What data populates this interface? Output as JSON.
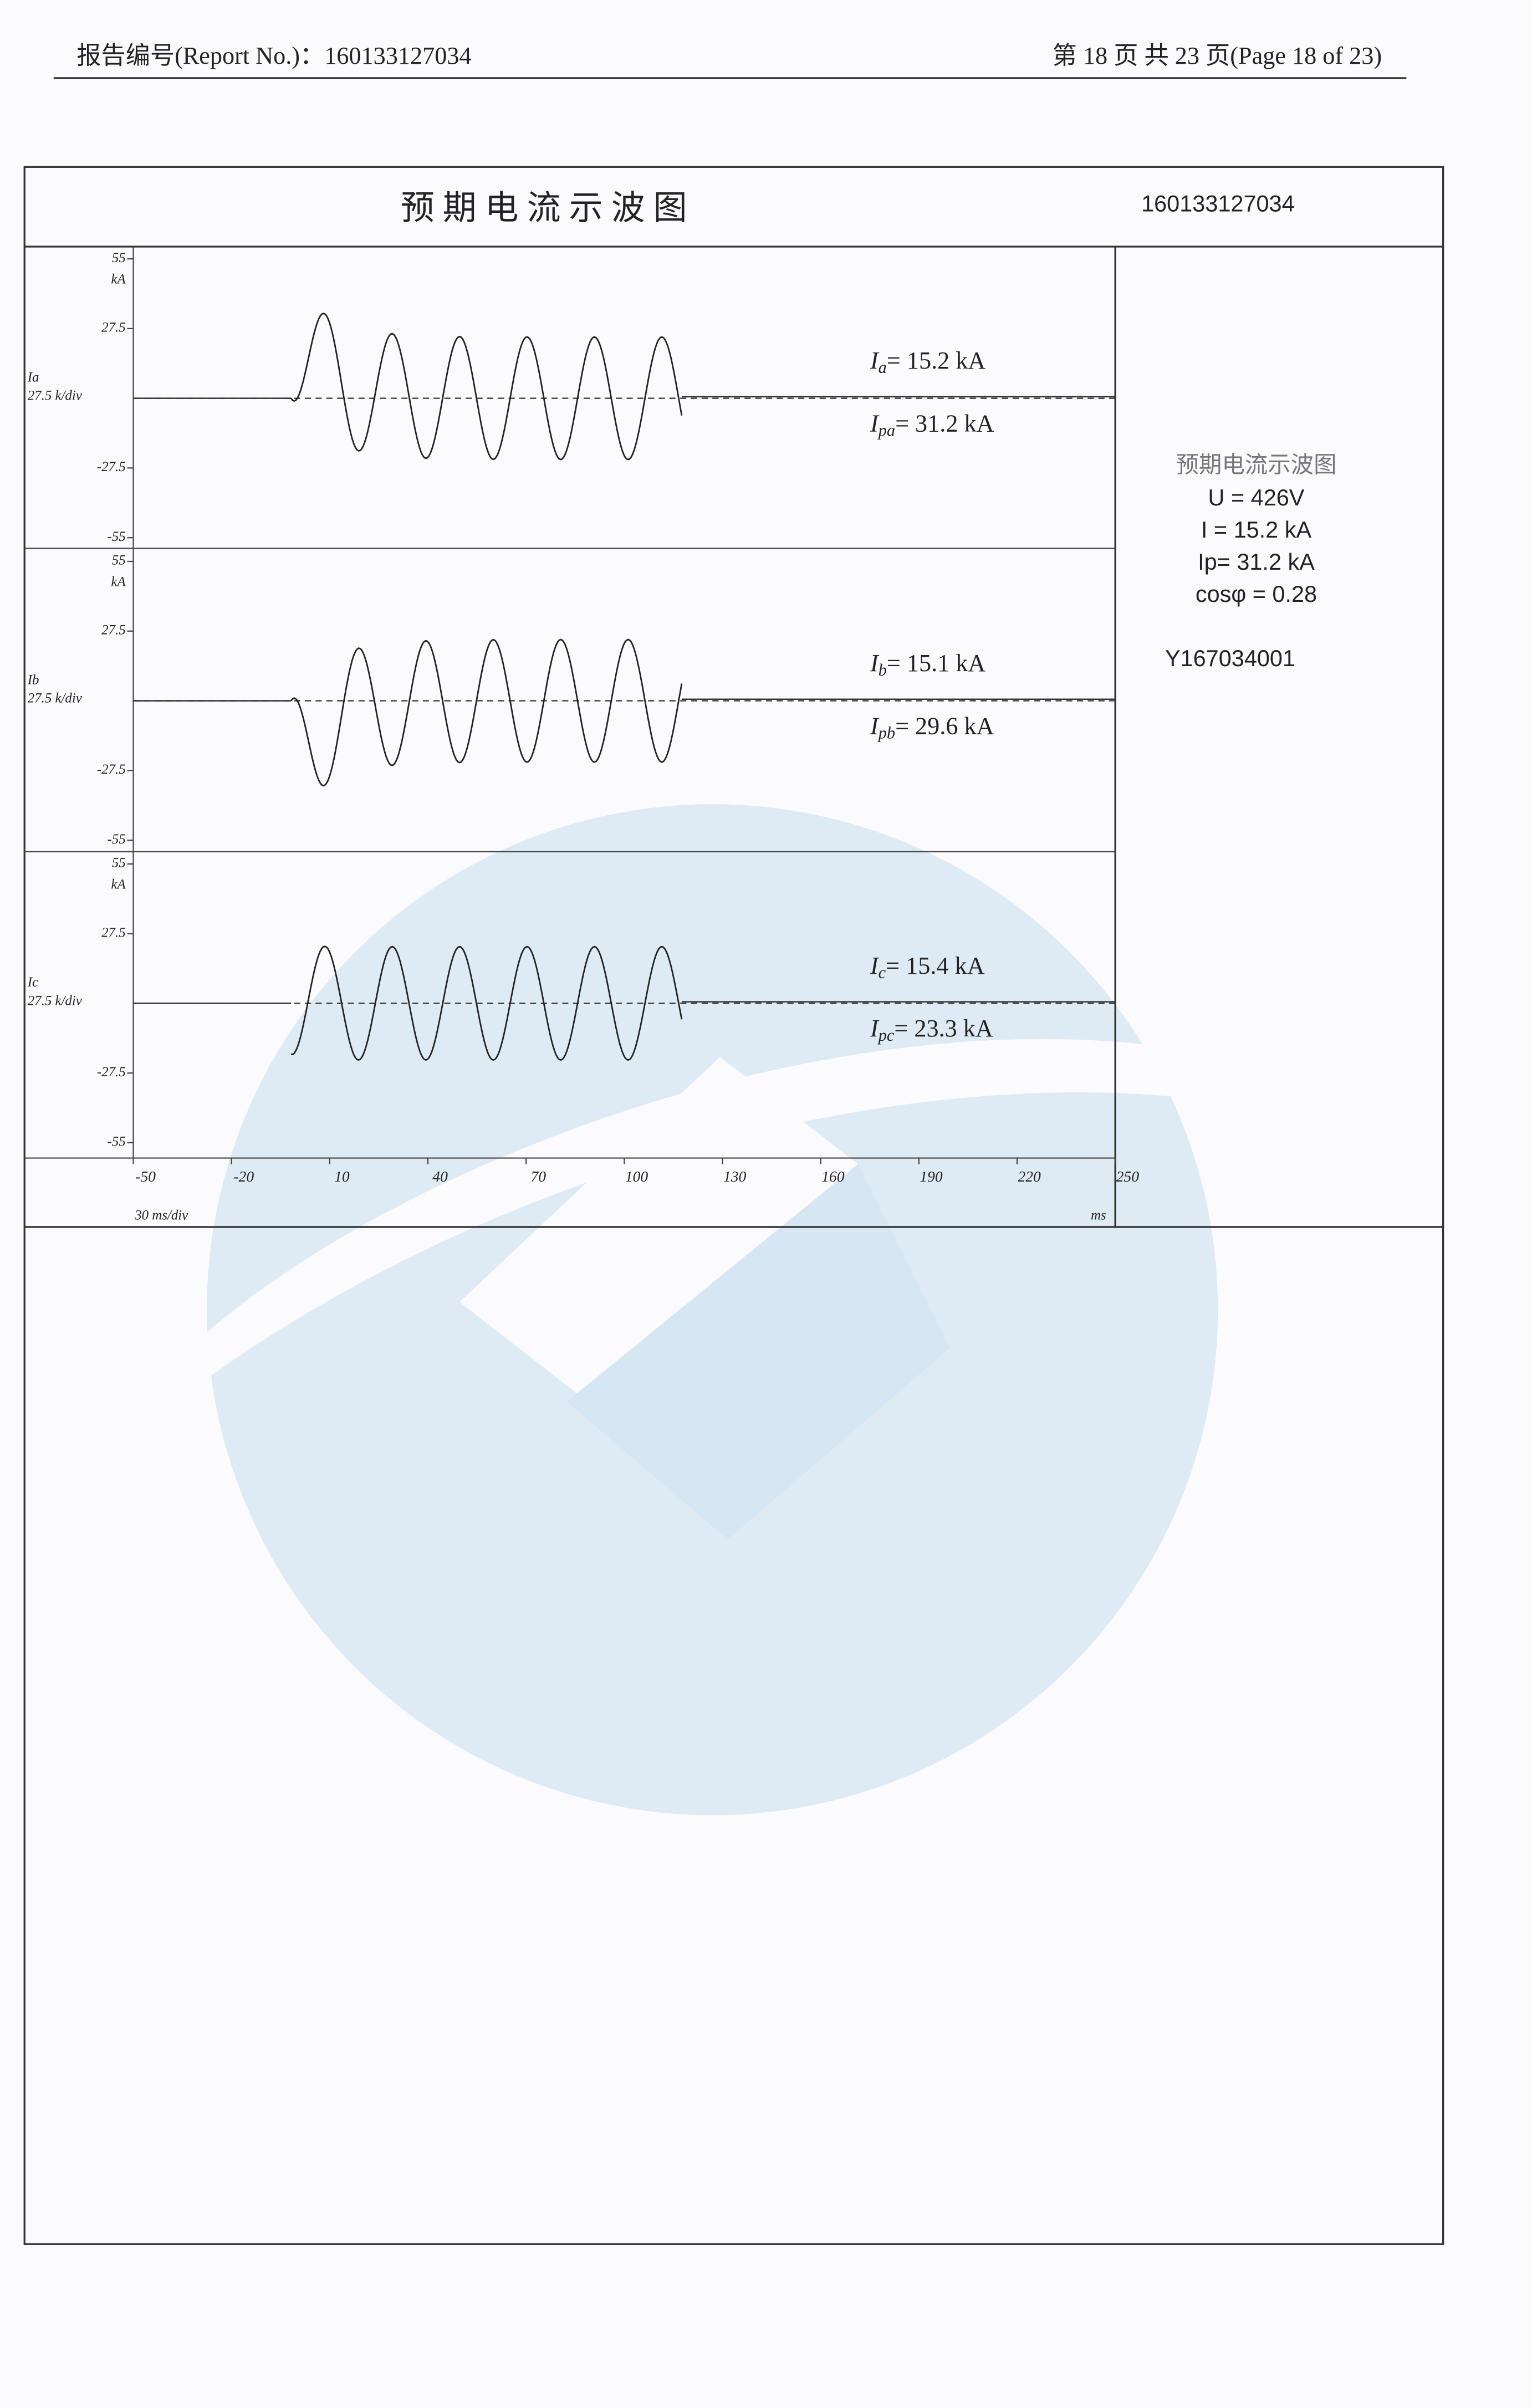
{
  "header": {
    "report_no": "报告编号(Report No.)：160133127034",
    "page": "第 18 页 共 23 页(Page 18 of 23)"
  },
  "figure": {
    "title": "预 期 电 流 示 波 图",
    "number": "160133127034",
    "ylim": [
      -55,
      55
    ],
    "yticks": [
      55,
      27.5,
      -27.5,
      -55
    ],
    "y_unit": "kA",
    "xlim": [
      -50,
      250
    ],
    "xticks": [
      -50,
      -20,
      10,
      40,
      70,
      100,
      130,
      160,
      190,
      220,
      250
    ],
    "x_scale": "30 ms/div",
    "x_unit": "ms",
    "channels": [
      {
        "name": "Ia",
        "scale": "27.5 k/div",
        "rms": {
          "symbol": "I",
          "sub": "a",
          "text": "= 15.2 kA"
        },
        "peak": {
          "symbol": "I",
          "sub": "pa",
          "text": "= 31.2 kA"
        }
      },
      {
        "name": "Ib",
        "scale": "27.5 k/div",
        "rms": {
          "symbol": "I",
          "sub": "b",
          "text": "= 15.1 kA"
        },
        "peak": {
          "symbol": "I",
          "sub": "pb",
          "text": "= 29.6 kA"
        }
      },
      {
        "name": "Ic",
        "scale": "27.5 k/div",
        "rms": {
          "symbol": "I",
          "sub": "c",
          "text": "= 15.4 kA"
        },
        "peak": {
          "symbol": "I",
          "sub": "pc",
          "text": "= 23.3 kA"
        }
      }
    ],
    "info": {
      "title": "预期电流示波图",
      "lines": [
        "U = 426V",
        "I =  15.2 kA",
        "Ip= 31.2 kA",
        "cosφ = 0.28"
      ],
      "code": "Y167034001"
    }
  }
}
